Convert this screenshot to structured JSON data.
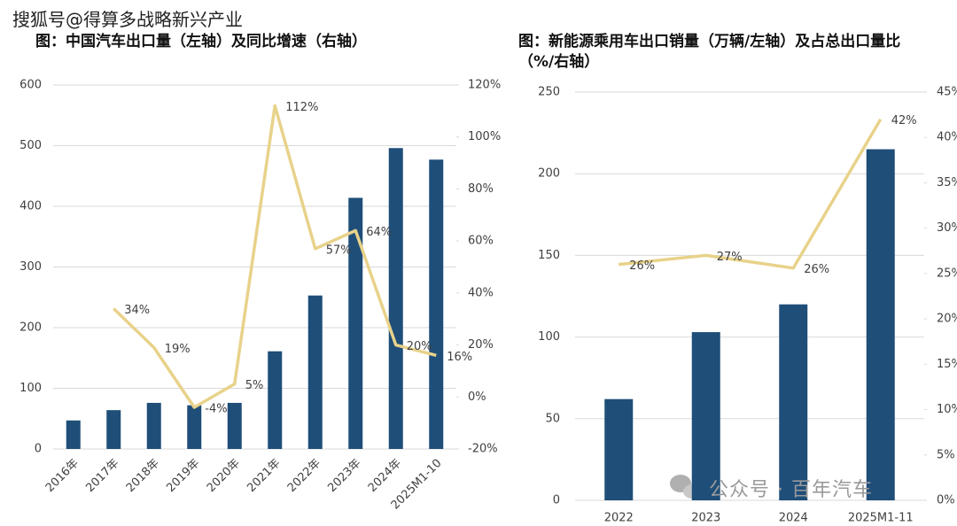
{
  "header_watermark": "搜狐号@得算多战略新兴产业",
  "footer_watermark": "公众号 · 百年汽车",
  "chart_data": [
    {
      "type": "bar-line",
      "title": "图：中国汽车出口量（左轴）及同比增速（右轴）",
      "categories": [
        "2016年",
        "2017年",
        "2018年",
        "2019年",
        "2020年",
        "2021年",
        "2022年",
        "2023年",
        "2024年",
        "2025M1-10"
      ],
      "series": [
        {
          "type": "bar",
          "color": "#1f4e79",
          "axis": "y",
          "values": [
            47,
            64,
            76,
            72,
            76,
            161,
            253,
            414,
            496,
            477
          ]
        },
        {
          "type": "line",
          "color": "#e8d28a",
          "axis": "y2",
          "values": [
            null,
            34,
            19,
            -4,
            5,
            112,
            57,
            64,
            20,
            16
          ],
          "value_labels": [
            null,
            "34%",
            "19%",
            "-4%",
            "5%",
            "112%",
            "57%",
            "64%",
            "20%",
            "16%"
          ]
        }
      ],
      "ylim": [
        0,
        600
      ],
      "yticks": [
        0,
        100,
        200,
        300,
        400,
        500,
        600
      ],
      "y2lim": [
        -20,
        120
      ],
      "y2ticks": [
        {
          "value": -20,
          "label": "-20%"
        },
        {
          "value": 0,
          "label": "0%"
        },
        {
          "value": 20,
          "label": "20%"
        },
        {
          "value": 40,
          "label": "40%"
        },
        {
          "value": 60,
          "label": "60%"
        },
        {
          "value": 80,
          "label": "80%"
        },
        {
          "value": 100,
          "label": "100%"
        },
        {
          "value": 120,
          "label": "120%"
        }
      ],
      "grid": true
    },
    {
      "type": "bar-line",
      "title": "图：新能源乘用车出口销量（万辆/左轴）及占总出口量比（%/右轴）",
      "categories": [
        "2022",
        "2023",
        "2024",
        "2025M1-11"
      ],
      "series": [
        {
          "type": "bar",
          "color": "#1f4e79",
          "axis": "y",
          "values": [
            62,
            103,
            120,
            215
          ]
        },
        {
          "type": "line",
          "color": "#e8d28a",
          "axis": "y2",
          "values": [
            26,
            27,
            25.6,
            42
          ],
          "value_labels": [
            "26%",
            "27%",
            "26%",
            "42%"
          ]
        }
      ],
      "ylim": [
        0,
        250
      ],
      "yticks": [
        0,
        50,
        100,
        150,
        200,
        250
      ],
      "y2lim": [
        0,
        45
      ],
      "y2ticks": [
        {
          "value": 0,
          "label": "0%"
        },
        {
          "value": 5,
          "label": "5%"
        },
        {
          "value": 10,
          "label": "10%"
        },
        {
          "value": 15,
          "label": "15%"
        },
        {
          "value": 20,
          "label": "20%"
        },
        {
          "value": 25,
          "label": "25%"
        },
        {
          "value": 30,
          "label": "30%"
        },
        {
          "value": 35,
          "label": "35%"
        },
        {
          "value": 40,
          "label": "40%"
        },
        {
          "value": 45,
          "label": "45%"
        }
      ],
      "grid": true
    }
  ]
}
